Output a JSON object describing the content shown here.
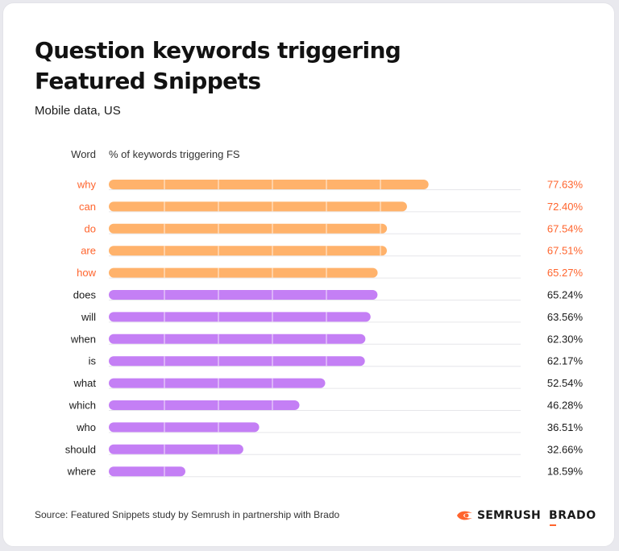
{
  "header": {
    "title": "Question keywords triggering Featured Snippets",
    "subtitle": "Mobile data, US"
  },
  "footer": {
    "source": "Source: Featured Snippets study by Semrush in partnership with Brado",
    "logos": [
      {
        "name": "semrush-logo",
        "text": "SEMRUSH"
      },
      {
        "name": "brado-logo",
        "text": "BRADO"
      }
    ]
  },
  "colors": {
    "highlight_bar": "#ffb26b",
    "highlight_text": "#ff642d",
    "default_bar": "#c47ff5",
    "default_text": "#1a1a1a",
    "grid": "#e6e6ea"
  },
  "chart_data": {
    "type": "bar",
    "orientation": "horizontal",
    "column_headers": [
      "Word",
      "% of keywords triggering FS"
    ],
    "categories": [
      "why",
      "can",
      "do",
      "are",
      "how",
      "does",
      "will",
      "when",
      "is",
      "what",
      "which",
      "who",
      "should",
      "where"
    ],
    "values": [
      77.63,
      72.4,
      67.54,
      67.51,
      65.27,
      65.24,
      63.56,
      62.3,
      62.17,
      52.54,
      46.28,
      36.51,
      32.66,
      18.59
    ],
    "value_labels": [
      "77.63%",
      "72.40%",
      "67.54%",
      "67.51%",
      "65.27%",
      "65.24%",
      "63.56%",
      "62.30%",
      "62.17%",
      "52.54%",
      "46.28%",
      "36.51%",
      "32.66%",
      "18.59%"
    ],
    "highlighted": [
      true,
      true,
      true,
      true,
      true,
      false,
      false,
      false,
      false,
      false,
      false,
      false,
      false,
      false
    ],
    "xlim": [
      0,
      100
    ],
    "grid": true,
    "legend": "none"
  }
}
